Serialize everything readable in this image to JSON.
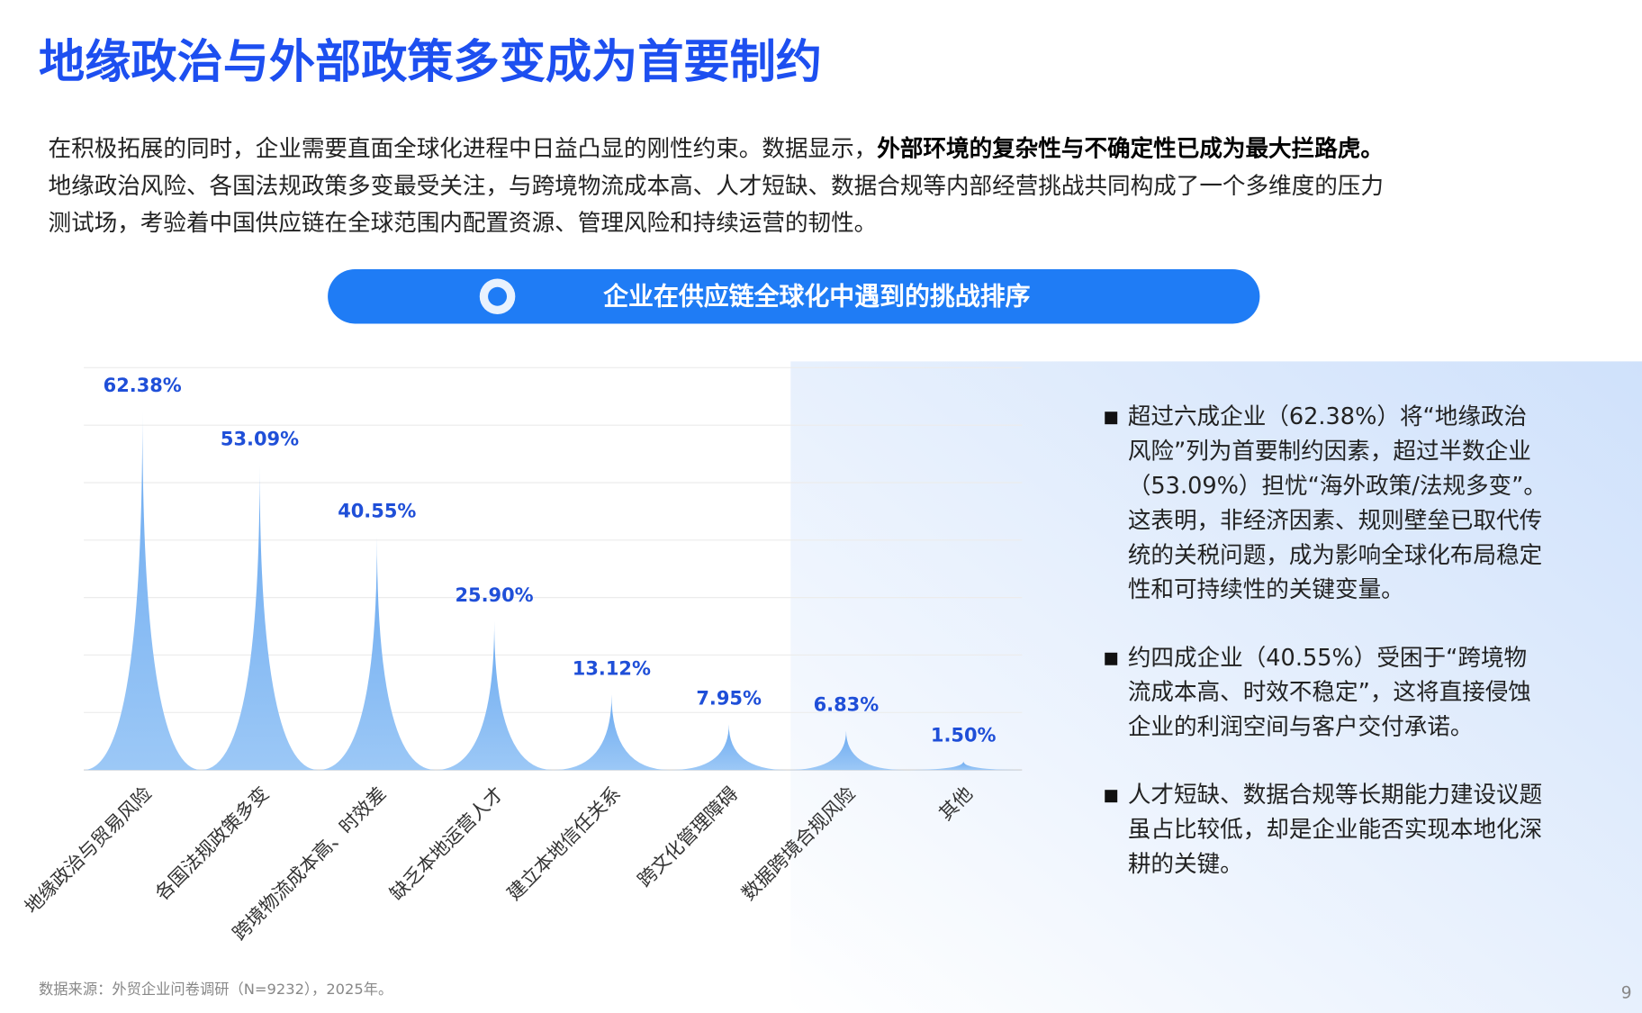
{
  "header": {
    "title": "地缘政治与外部政策多变成为首要制约"
  },
  "intro": {
    "line1": "在积极拓展的同时，企业需要直面全球化进程中日益凸显的刚性约束。数据显示，",
    "line1_emphasis": "外部环境的复杂性与不确定性已成为最大拦路虎。",
    "line2": "地缘政治风险、各国法规政策多变最受关注，与跨境物流成本高、人才短缺、数据合规等内部经营挑战共同构成了一个多维度的压力",
    "line3": "测试场，考验着中国供应链在全球范围内配置资源、管理风险和持续运营的韧性。"
  },
  "banner": {
    "title": "企业在供应链全球化中遇到的挑战排序"
  },
  "chart_data": {
    "type": "bar",
    "categories": [
      "地缘政治与贸易风险",
      "各国法规政策多变",
      "跨境物流成本高、时效差",
      "缺乏本地运营人才",
      "建立本地信任关系",
      "跨文化管理障碍",
      "数据跨境合规风险",
      "其他"
    ],
    "values": [
      62.38,
      53.09,
      40.55,
      25.9,
      13.12,
      7.95,
      6.83,
      1.5
    ],
    "value_labels": [
      "62.38%",
      "53.09%",
      "40.55%",
      "25.90%",
      "13.12%",
      "7.95%",
      "6.83%",
      "1.50%"
    ],
    "color": "#7ab4f2",
    "label_color": "#1f4fd8",
    "ylim": [
      0,
      70
    ],
    "yticks": [
      0,
      10,
      20,
      30,
      40,
      50,
      60,
      70
    ],
    "grid": true
  },
  "notes": {
    "bullets": [
      [
        "超过六成企业（62.38%）将“地缘政治",
        "风险”列为首要制约因素，超过半数企业",
        "（53.09%）担忧“海外政策/法规多变”。",
        "这表明，非经济因素、规则壁垒已取代传",
        "统的关税问题，成为影响全球化布局稳定",
        "性和可持续性的关键变量。"
      ],
      [
        "约四成企业（40.55%）受困于“跨境物",
        "流成本高、时效不稳定”，这将直接侵蚀",
        "企业的利润空间与客户交付承诺。"
      ],
      [
        "人才短缺、数据合规等长期能力建设议题",
        "虽占比较低，却是企业能否实现本地化深",
        "耕的关键。"
      ]
    ]
  },
  "footer": {
    "source": "数据来源：外贸企业问卷调研（N=9232），2025年。",
    "page_number": "9"
  }
}
